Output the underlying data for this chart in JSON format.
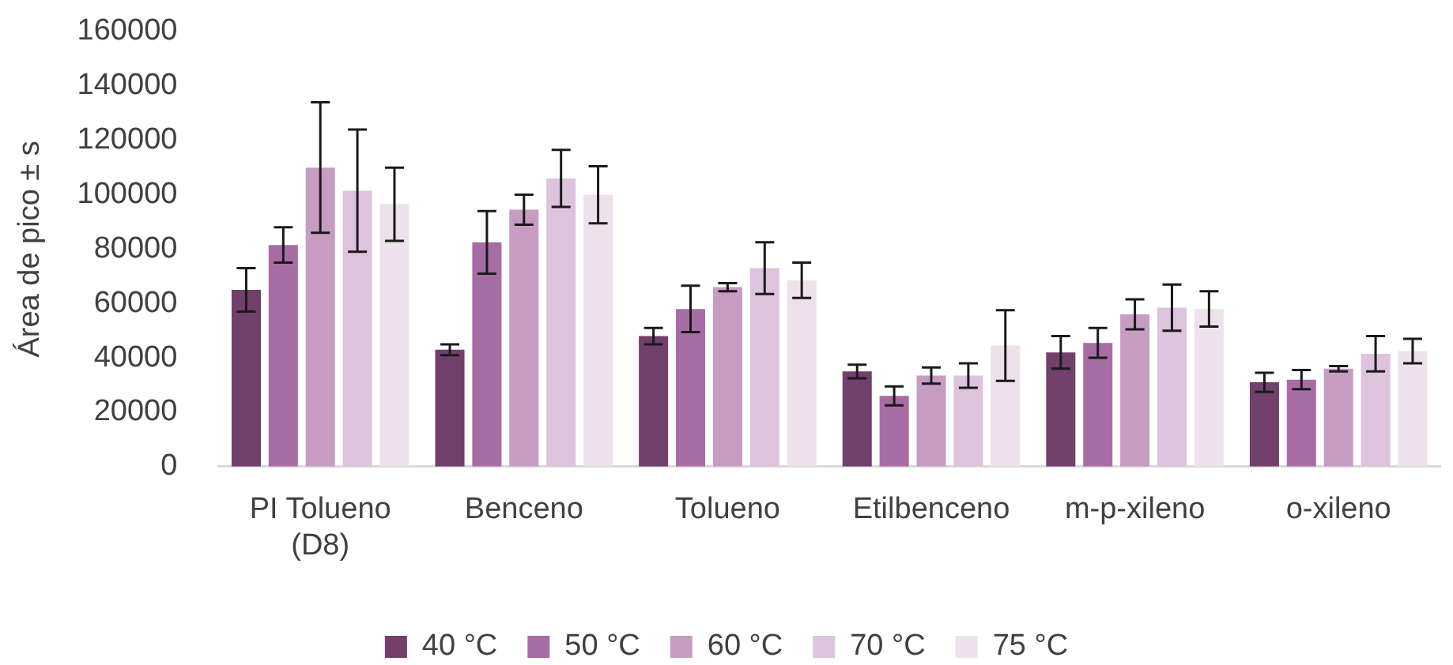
{
  "chart_data": {
    "type": "bar",
    "ylabel": "Área de pico ± s",
    "categories": [
      "PI Tolueno (D8)",
      "Benceno",
      "Tolueno",
      "Etilbenceno",
      "m-p-xileno",
      "o-xileno"
    ],
    "series": [
      {
        "name": "40 °C",
        "color": "#71406b",
        "values": [
          65000,
          43000,
          48000,
          35000,
          42000,
          31000
        ],
        "errors": [
          8000,
          2000,
          3000,
          2500,
          6000,
          3500
        ]
      },
      {
        "name": "50 °C",
        "color": "#a86ca4",
        "values": [
          81500,
          82500,
          58000,
          26000,
          45500,
          32000
        ],
        "errors": [
          6500,
          11500,
          8500,
          3500,
          5500,
          3500
        ]
      },
      {
        "name": "60 °C",
        "color": "#c79cc3",
        "values": [
          110000,
          94500,
          66000,
          33500,
          56000,
          36000
        ],
        "errors": [
          24000,
          5500,
          1500,
          3000,
          5500,
          1000
        ]
      },
      {
        "name": "70 °C",
        "color": "#ddc3db",
        "values": [
          101500,
          106000,
          73000,
          33500,
          58500,
          41500
        ],
        "errors": [
          22500,
          10500,
          9500,
          4500,
          8500,
          6500
        ]
      },
      {
        "name": "75 °C",
        "color": "#ede2eb",
        "values": [
          96500,
          100000,
          68500,
          44500,
          58000,
          42500
        ],
        "errors": [
          13500,
          10500,
          6500,
          13000,
          6500,
          4500
        ]
      }
    ],
    "ylim": [
      0,
      160000
    ],
    "yticks": [
      0,
      20000,
      40000,
      60000,
      80000,
      100000,
      120000,
      140000,
      160000
    ],
    "grid": false,
    "legend": "bottom"
  }
}
